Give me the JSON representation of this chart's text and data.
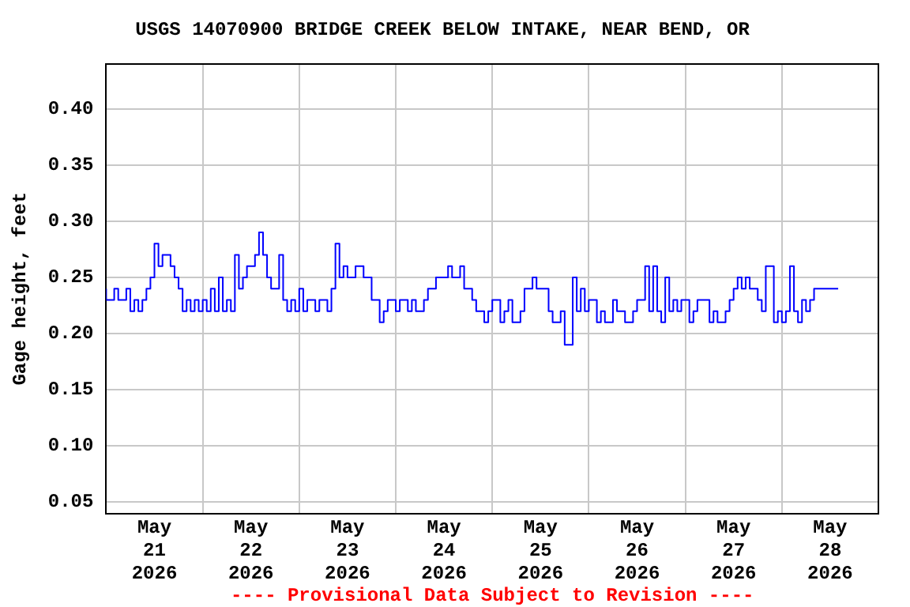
{
  "chart_data": {
    "type": "step",
    "title": "USGS 14070900 BRIDGE CREEK BELOW INTAKE, NEAR BEND, OR",
    "ylabel": "Gage height, feet",
    "annotations": [
      "---- Provisional Data Subject to Revision ----"
    ],
    "series": [
      {
        "color": "#0000ff",
        "x": [
          "2026-05-21T00:00",
          "2026-05-21T02:00",
          "2026-05-21T03:00",
          "2026-05-21T05:00",
          "2026-05-21T06:00",
          "2026-05-21T07:00",
          "2026-05-21T08:00",
          "2026-05-21T09:00",
          "2026-05-21T10:00",
          "2026-05-21T11:00",
          "2026-05-21T12:00",
          "2026-05-21T13:00",
          "2026-05-21T14:00",
          "2026-05-21T16:00",
          "2026-05-21T17:00",
          "2026-05-21T18:00",
          "2026-05-21T19:00",
          "2026-05-21T20:00",
          "2026-05-21T21:00",
          "2026-05-21T22:00",
          "2026-05-21T23:00",
          "2026-05-22T00:00",
          "2026-05-22T01:00",
          "2026-05-22T02:00",
          "2026-05-22T03:00",
          "2026-05-22T04:00",
          "2026-05-22T05:00",
          "2026-05-22T06:00",
          "2026-05-22T07:00",
          "2026-05-22T08:00",
          "2026-05-22T09:00",
          "2026-05-22T10:00",
          "2026-05-22T11:00",
          "2026-05-22T13:00",
          "2026-05-22T14:00",
          "2026-05-22T15:00",
          "2026-05-22T16:00",
          "2026-05-22T17:00",
          "2026-05-22T19:00",
          "2026-05-22T20:00",
          "2026-05-22T21:00",
          "2026-05-22T22:00",
          "2026-05-22T23:00",
          "2026-05-23T00:00",
          "2026-05-23T01:00",
          "2026-05-23T02:00",
          "2026-05-23T04:00",
          "2026-05-23T05:00",
          "2026-05-23T07:00",
          "2026-05-23T08:00",
          "2026-05-23T09:00",
          "2026-05-23T10:00",
          "2026-05-23T11:00",
          "2026-05-23T12:00",
          "2026-05-23T14:00",
          "2026-05-23T15:00",
          "2026-05-23T16:00",
          "2026-05-23T18:00",
          "2026-05-23T20:00",
          "2026-05-23T21:00",
          "2026-05-23T22:00",
          "2026-05-24T00:00",
          "2026-05-24T01:00",
          "2026-05-24T03:00",
          "2026-05-24T04:00",
          "2026-05-24T05:00",
          "2026-05-24T07:00",
          "2026-05-24T08:00",
          "2026-05-24T10:00",
          "2026-05-24T11:00",
          "2026-05-24T13:00",
          "2026-05-24T14:00",
          "2026-05-24T16:00",
          "2026-05-24T17:00",
          "2026-05-24T19:00",
          "2026-05-24T20:00",
          "2026-05-24T22:00",
          "2026-05-24T23:00",
          "2026-05-25T00:00",
          "2026-05-25T02:00",
          "2026-05-25T03:00",
          "2026-05-25T04:00",
          "2026-05-25T05:00",
          "2026-05-25T07:00",
          "2026-05-25T08:00",
          "2026-05-25T10:00",
          "2026-05-25T11:00",
          "2026-05-25T14:00",
          "2026-05-25T15:00",
          "2026-05-25T17:00",
          "2026-05-25T18:00",
          "2026-05-25T20:00",
          "2026-05-25T21:00",
          "2026-05-25T22:00",
          "2026-05-25T23:00",
          "2026-05-26T00:00",
          "2026-05-26T02:00",
          "2026-05-26T03:00",
          "2026-05-26T04:00",
          "2026-05-26T06:00",
          "2026-05-26T07:00",
          "2026-05-26T09:00",
          "2026-05-26T11:00",
          "2026-05-26T12:00",
          "2026-05-26T14:00",
          "2026-05-26T15:00",
          "2026-05-26T16:00",
          "2026-05-26T17:00",
          "2026-05-26T18:00",
          "2026-05-26T19:00",
          "2026-05-26T20:00",
          "2026-05-26T21:00",
          "2026-05-26T22:00",
          "2026-05-26T23:00",
          "2026-05-27T01:00",
          "2026-05-27T02:00",
          "2026-05-27T03:00",
          "2026-05-27T06:00",
          "2026-05-27T07:00",
          "2026-05-27T08:00",
          "2026-05-27T10:00",
          "2026-05-27T11:00",
          "2026-05-27T12:00",
          "2026-05-27T13:00",
          "2026-05-27T14:00",
          "2026-05-27T15:00",
          "2026-05-27T16:00",
          "2026-05-27T18:00",
          "2026-05-27T19:00",
          "2026-05-27T20:00",
          "2026-05-27T22:00",
          "2026-05-27T23:00",
          "2026-05-28T00:00",
          "2026-05-28T01:00",
          "2026-05-28T02:00",
          "2026-05-28T03:00",
          "2026-05-28T04:00",
          "2026-05-28T05:00",
          "2026-05-28T06:00",
          "2026-05-28T07:00",
          "2026-05-28T08:00",
          "2026-05-28T09:00",
          "2026-05-28T12:00",
          "2026-05-28T13:00",
          "2026-05-28T14:00"
        ],
        "values": [
          0.24,
          0.23,
          0.24,
          0.23,
          0.24,
          0.22,
          0.23,
          0.22,
          0.23,
          0.24,
          0.25,
          0.28,
          0.26,
          0.27,
          0.26,
          0.25,
          0.24,
          0.22,
          0.23,
          0.22,
          0.23,
          0.22,
          0.23,
          0.22,
          0.24,
          0.22,
          0.25,
          0.22,
          0.23,
          0.22,
          0.27,
          0.24,
          0.25,
          0.26,
          0.27,
          0.29,
          0.27,
          0.25,
          0.24,
          0.27,
          0.23,
          0.22,
          0.23,
          0.22,
          0.24,
          0.22,
          0.23,
          0.22,
          0.23,
          0.22,
          0.24,
          0.28,
          0.25,
          0.26,
          0.25,
          0.26,
          0.26,
          0.25,
          0.23,
          0.21,
          0.22,
          0.23,
          0.22,
          0.23,
          0.22,
          0.23,
          0.22,
          0.23,
          0.24,
          0.25,
          0.25,
          0.26,
          0.25,
          0.26,
          0.24,
          0.23,
          0.22,
          0.21,
          0.22,
          0.23,
          0.21,
          0.22,
          0.23,
          0.21,
          0.22,
          0.24,
          0.25,
          0.24,
          0.22,
          0.21,
          0.22,
          0.19,
          0.25,
          0.22,
          0.24,
          0.22,
          0.23,
          0.21,
          0.22,
          0.21,
          0.23,
          0.22,
          0.21,
          0.22,
          0.23,
          0.26,
          0.22,
          0.26,
          0.22,
          0.21,
          0.25,
          0.22,
          0.23,
          0.22,
          0.23,
          0.21,
          0.22,
          0.23,
          0.21,
          0.22,
          0.21,
          0.22,
          0.23,
          0.24,
          0.25,
          0.24,
          0.25,
          0.24,
          0.23,
          0.22,
          0.26,
          0.21,
          0.22,
          0.21,
          0.22,
          0.26,
          0.22,
          0.21,
          0.23,
          0.22,
          0.23,
          0.24,
          0.24,
          0.24,
          0.24
        ]
      }
    ],
    "xlim": [
      "2026-05-21",
      "2026-05-29"
    ],
    "xticks": [
      {
        "value": "2026-05-21T12:00",
        "label": "May 21 2026"
      },
      {
        "value": "2026-05-22",
        "label": null
      },
      {
        "value": "2026-05-22T12:00",
        "label": "May 22 2026"
      },
      {
        "value": "2026-05-23",
        "label": null
      },
      {
        "value": "2026-05-23T12:00",
        "label": "May 23 2026"
      },
      {
        "value": "2026-05-24",
        "label": null
      },
      {
        "value": "2026-05-24T12:00",
        "label": "May 24 2026"
      },
      {
        "value": "2026-05-25",
        "label": null
      },
      {
        "value": "2026-05-25T12:00",
        "label": "May 25 2026"
      },
      {
        "value": "2026-05-26",
        "label": null
      },
      {
        "value": "2026-05-26T12:00",
        "label": "May 26 2026"
      },
      {
        "value": "2026-05-27",
        "label": null
      },
      {
        "value": "2026-05-27T12:00",
        "label": "May 27 2026"
      },
      {
        "value": "2026-05-28",
        "label": null
      },
      {
        "value": "2026-05-28T12:00",
        "label": "May 28 2026"
      }
    ],
    "ylim": [
      0.04,
      0.44
    ],
    "yticks": [
      {
        "value": 0.05,
        "label": "0.05"
      },
      {
        "value": 0.1,
        "label": "0.10"
      },
      {
        "value": 0.15,
        "label": "0.15"
      },
      {
        "value": 0.2,
        "label": "0.20"
      },
      {
        "value": 0.25,
        "label": "0.25"
      },
      {
        "value": 0.3,
        "label": "0.30"
      },
      {
        "value": 0.35,
        "label": "0.35"
      },
      {
        "value": 0.4,
        "label": "0.40"
      }
    ],
    "grid": true,
    "legend": false
  }
}
